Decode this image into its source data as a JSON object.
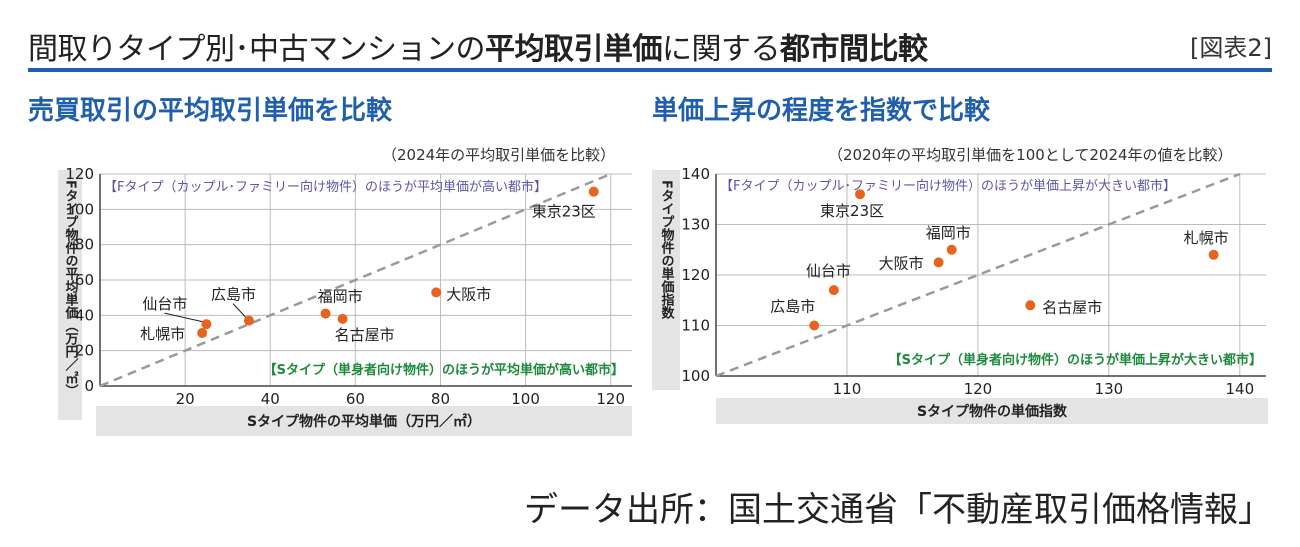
{
  "header": {
    "title_parts": [
      "間取りタイプ別･中古マンションの",
      "平均取引単価",
      "に関する",
      "都市間比較"
    ],
    "figure_label": "[図表2]"
  },
  "source": "データ出所：国土交通省「不動産取引価格情報」",
  "colors": {
    "accent": "#1f5fae",
    "point": "#e8641e",
    "diag": "#9a9a9a",
    "grid": "#bcbcbc",
    "green": "#1e8a3c",
    "purple": "#5b56a8",
    "axisBand": "#e4e4e4"
  },
  "chart_data": [
    {
      "type": "scatter",
      "title": "売買取引の平均取引単価を比較",
      "subtitle": "（2024年の平均取引単価を比較）",
      "xlabel": "Sタイプ物件の平均単価（万円／㎡）",
      "ylabel": "Fタイプ物件の平均単価（万円／㎡）",
      "xlim": [
        0,
        125
      ],
      "ylim": [
        0,
        120
      ],
      "xticks": [
        20,
        40,
        60,
        80,
        100,
        120
      ],
      "yticks": [
        0,
        20,
        40,
        60,
        80,
        100,
        120
      ],
      "grid": true,
      "diagonal": true,
      "annotations": {
        "upper": "【Fタイプ（カップル･ファミリー向け物件）のほうが平均単価が高い都市】",
        "lower": "【Sタイプ（単身者向け物件）のほうが平均単価が高い都市】"
      },
      "points": [
        {
          "label": "東京23区",
          "x": 116,
          "y": 110
        },
        {
          "label": "大阪市",
          "x": 79,
          "y": 53
        },
        {
          "label": "福岡市",
          "x": 53,
          "y": 41
        },
        {
          "label": "名古屋市",
          "x": 57,
          "y": 38
        },
        {
          "label": "広島市",
          "x": 35,
          "y": 37
        },
        {
          "label": "仙台市",
          "x": 25,
          "y": 35
        },
        {
          "label": "札幌市",
          "x": 24,
          "y": 30
        }
      ]
    },
    {
      "type": "scatter",
      "title": "単価上昇の程度を指数で比較",
      "subtitle": "（2020年の平均取引単価を100として2024年の値を比較）",
      "xlabel": "Sタイプ物件の単価指数",
      "ylabel": "Fタイプ物件の単価指数",
      "xlim": [
        100,
        142
      ],
      "ylim": [
        100,
        140
      ],
      "xticks": [
        110,
        120,
        130,
        140
      ],
      "yticks": [
        100,
        110,
        120,
        130,
        140
      ],
      "grid": true,
      "diagonal": true,
      "annotations": {
        "upper": "【Fタイプ（カップル･ファミリー向け物件）のほうが単価上昇が大きい都市】",
        "lower": "【Sタイプ（単身者向け物件）のほうが単価上昇が大きい都市】"
      },
      "points": [
        {
          "label": "東京23区",
          "x": 111,
          "y": 136
        },
        {
          "label": "札幌市",
          "x": 138,
          "y": 124
        },
        {
          "label": "福岡市",
          "x": 118,
          "y": 125
        },
        {
          "label": "大阪市",
          "x": 117,
          "y": 122.5
        },
        {
          "label": "仙台市",
          "x": 109,
          "y": 117
        },
        {
          "label": "名古屋市",
          "x": 124,
          "y": 114
        },
        {
          "label": "広島市",
          "x": 107.5,
          "y": 110
        }
      ]
    }
  ]
}
